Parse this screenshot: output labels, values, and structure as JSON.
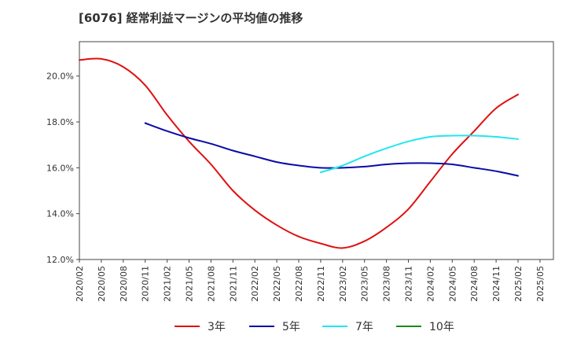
{
  "chart_data": {
    "type": "line",
    "title": "[6076]  経常利益マージンの平均値の推移",
    "xlabel": "",
    "ylabel": "",
    "ylim": [
      12.0,
      21.5
    ],
    "x_ticks": [
      "2020/02",
      "2020/05",
      "2020/08",
      "2020/11",
      "2021/02",
      "2021/05",
      "2021/08",
      "2021/11",
      "2022/02",
      "2022/05",
      "2022/08",
      "2022/11",
      "2023/02",
      "2023/05",
      "2023/08",
      "2023/11",
      "2024/02",
      "2024/05",
      "2024/08",
      "2024/11",
      "2025/02",
      "2025/05"
    ],
    "y_ticks": [
      "12.0%",
      "14.0%",
      "16.0%",
      "18.0%",
      "20.0%"
    ],
    "y_tick_values": [
      12,
      14,
      16,
      18,
      20
    ],
    "grid": false,
    "legend_position": "bottom",
    "series": [
      {
        "name": "3年",
        "color": "#e01010",
        "x": [
          "2020/02",
          "2020/05",
          "2020/08",
          "2020/11",
          "2021/02",
          "2021/05",
          "2021/08",
          "2021/11",
          "2022/02",
          "2022/05",
          "2022/08",
          "2022/11",
          "2023/02",
          "2023/05",
          "2023/08",
          "2023/11",
          "2024/02",
          "2024/05",
          "2024/08",
          "2024/11",
          "2025/02"
        ],
        "values": [
          20.7,
          20.75,
          20.4,
          19.6,
          18.3,
          17.15,
          16.15,
          15.0,
          14.15,
          13.5,
          13.0,
          12.7,
          12.5,
          12.8,
          13.4,
          14.2,
          15.4,
          16.6,
          17.6,
          18.6,
          19.2
        ]
      },
      {
        "name": "5年",
        "color": "#0a0aa8",
        "x": [
          "2020/11",
          "2021/02",
          "2021/05",
          "2021/08",
          "2021/11",
          "2022/02",
          "2022/05",
          "2022/08",
          "2022/11",
          "2023/02",
          "2023/05",
          "2023/08",
          "2023/11",
          "2024/02",
          "2024/05",
          "2024/08",
          "2024/11",
          "2025/02"
        ],
        "values": [
          17.95,
          17.6,
          17.3,
          17.05,
          16.75,
          16.5,
          16.25,
          16.1,
          16.0,
          16.0,
          16.05,
          16.15,
          16.2,
          16.2,
          16.15,
          16.0,
          15.85,
          15.65
        ]
      },
      {
        "name": "7年",
        "color": "#22e6ee",
        "x": [
          "2022/11",
          "2023/02",
          "2023/05",
          "2023/08",
          "2023/11",
          "2024/02",
          "2024/05",
          "2024/08",
          "2024/11",
          "2025/02"
        ],
        "values": [
          15.8,
          16.1,
          16.5,
          16.85,
          17.15,
          17.35,
          17.4,
          17.4,
          17.35,
          17.25
        ]
      },
      {
        "name": "10年",
        "color": "#1a8a1a",
        "x": [],
        "values": []
      }
    ]
  }
}
